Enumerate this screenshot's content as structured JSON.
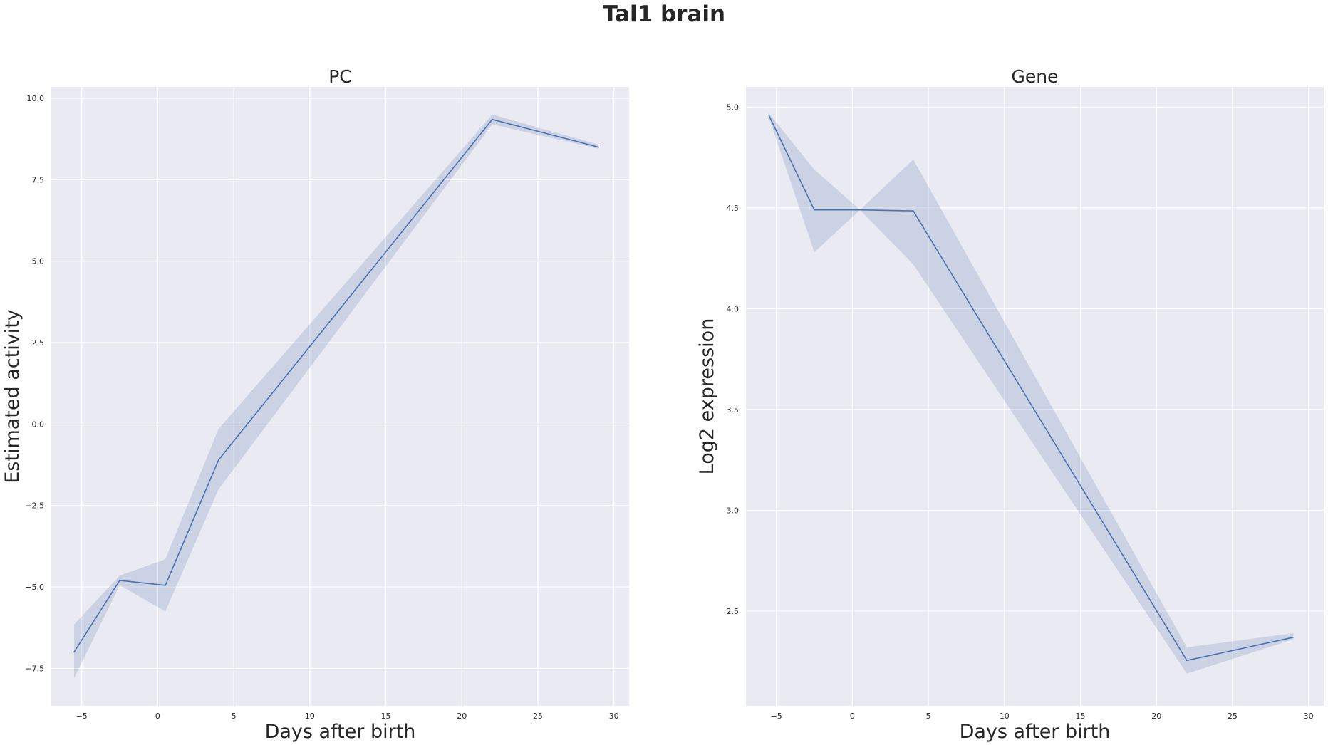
{
  "figure": {
    "title": "Tal1 brain"
  },
  "chart_data": [
    {
      "type": "line",
      "title": "PC",
      "xlabel": "Days after birth",
      "ylabel": "Estimated activity",
      "xlim": [
        -7,
        31
      ],
      "ylim": [
        -8.65,
        10.35
      ],
      "xticks": [
        -5,
        0,
        5,
        10,
        15,
        20,
        25,
        30
      ],
      "xtick_labels": [
        "−5",
        "0",
        "5",
        "10",
        "15",
        "20",
        "25",
        "30"
      ],
      "yticks": [
        -7.5,
        -5.0,
        -2.5,
        0.0,
        2.5,
        5.0,
        7.5,
        10.0
      ],
      "ytick_labels": [
        "−7.5",
        "−5.0",
        "−2.5",
        "0.0",
        "2.5",
        "5.0",
        "7.5",
        "10.0"
      ],
      "grid": true,
      "line_color": "#4c72b0",
      "band_color": "#4c72b0",
      "series": [
        {
          "x": [
            -5.5,
            -2.5,
            0.5,
            4,
            22,
            29
          ],
          "y": [
            -7.0,
            -4.8,
            -4.95,
            -1.1,
            9.35,
            8.5
          ],
          "lower": [
            -7.8,
            -4.95,
            -5.75,
            -2.0,
            9.2,
            8.45
          ],
          "upper": [
            -6.15,
            -4.65,
            -4.15,
            -0.15,
            9.5,
            8.58
          ]
        }
      ]
    },
    {
      "type": "line",
      "title": "Gene",
      "xlabel": "Days after birth",
      "ylabel": "Log2 expression",
      "xlim": [
        -7,
        31
      ],
      "ylim": [
        2.03,
        5.1
      ],
      "xticks": [
        -5,
        0,
        5,
        10,
        15,
        20,
        25,
        30
      ],
      "xtick_labels": [
        "−5",
        "0",
        "5",
        "10",
        "15",
        "20",
        "25",
        "30"
      ],
      "yticks": [
        2.5,
        3.0,
        3.5,
        4.0,
        4.5,
        5.0
      ],
      "ytick_labels": [
        "2.5",
        "3.0",
        "3.5",
        "4.0",
        "4.5",
        "5.0"
      ],
      "grid": true,
      "line_color": "#4c72b0",
      "band_color": "#4c72b0",
      "series": [
        {
          "x": [
            -5.5,
            -2.5,
            0.5,
            4,
            22,
            29
          ],
          "y": [
            4.96,
            4.49,
            4.49,
            4.485,
            2.255,
            2.37
          ],
          "lower": [
            4.95,
            4.28,
            4.49,
            4.22,
            2.19,
            2.36
          ],
          "upper": [
            4.97,
            4.69,
            4.49,
            4.74,
            2.32,
            2.39
          ]
        }
      ]
    }
  ]
}
